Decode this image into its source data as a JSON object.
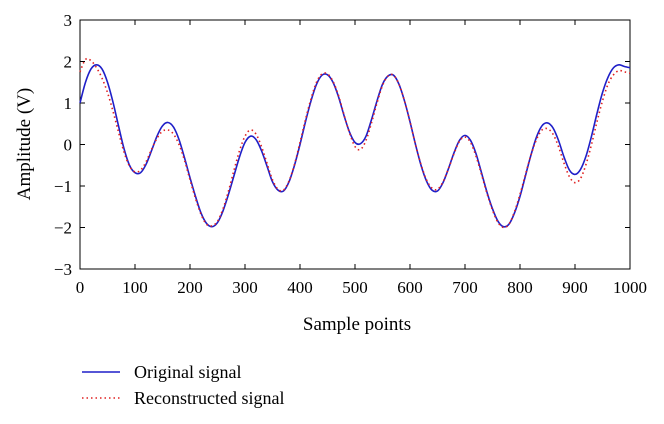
{
  "chart_data": {
    "type": "line",
    "xlabel": "Sample points",
    "ylabel": "Amplitude (V)",
    "xlim": [
      0,
      1000
    ],
    "ylim": [
      -3,
      3
    ],
    "xticks": [
      "0",
      "100",
      "200",
      "300",
      "400",
      "500",
      "600",
      "700",
      "800",
      "900",
      "1000"
    ],
    "yticks": [
      "−3",
      "−2",
      "−1",
      "0",
      "1",
      "2",
      "3"
    ],
    "grid": false,
    "legend_position": "below",
    "series": [
      {
        "name": "Original signal",
        "style": "solid",
        "color": "#1f1fc8",
        "x": [
          0,
          10,
          20,
          30,
          40,
          50,
          60,
          70,
          80,
          90,
          100,
          110,
          120,
          130,
          140,
          150,
          160,
          170,
          180,
          190,
          200,
          210,
          220,
          230,
          240,
          250,
          260,
          270,
          280,
          290,
          300,
          310,
          320,
          330,
          340,
          350,
          360,
          370,
          380,
          390,
          400,
          410,
          420,
          430,
          440,
          450,
          460,
          470,
          480,
          490,
          500,
          510,
          520,
          530,
          540,
          550,
          560,
          570,
          580,
          590,
          600,
          610,
          620,
          630,
          640,
          650,
          660,
          670,
          680,
          690,
          700,
          710,
          720,
          730,
          740,
          750,
          760,
          770,
          780,
          790,
          800,
          810,
          820,
          830,
          840,
          850,
          860,
          870,
          880,
          890,
          900,
          910,
          920,
          930,
          940,
          950,
          960,
          970,
          980,
          990,
          1000
        ],
        "y": [
          1.0,
          1.5,
          1.82,
          1.92,
          1.82,
          1.5,
          1.02,
          0.45,
          -0.1,
          -0.5,
          -0.68,
          -0.68,
          -0.48,
          -0.15,
          0.2,
          0.45,
          0.53,
          0.42,
          0.12,
          -0.32,
          -0.8,
          -1.25,
          -1.65,
          -1.9,
          -1.98,
          -1.88,
          -1.6,
          -1.2,
          -0.75,
          -0.3,
          0.05,
          0.2,
          0.12,
          -0.15,
          -0.52,
          -0.9,
          -1.1,
          -1.12,
          -0.9,
          -0.5,
          0.0,
          0.55,
          1.05,
          1.45,
          1.67,
          1.68,
          1.5,
          1.15,
          0.7,
          0.3,
          0.05,
          0.02,
          0.2,
          0.6,
          1.05,
          1.45,
          1.65,
          1.67,
          1.45,
          1.05,
          0.55,
          0.0,
          -0.5,
          -0.88,
          -1.1,
          -1.12,
          -0.92,
          -0.58,
          -0.2,
          0.1,
          0.22,
          0.1,
          -0.22,
          -0.68,
          -1.15,
          -1.55,
          -1.85,
          -1.98,
          -1.92,
          -1.65,
          -1.25,
          -0.75,
          -0.25,
          0.18,
          0.45,
          0.52,
          0.4,
          0.1,
          -0.3,
          -0.62,
          -0.72,
          -0.6,
          -0.28,
          0.2,
          0.75,
          1.25,
          1.62,
          1.85,
          1.92,
          1.88,
          1.85
        ]
      },
      {
        "name": "Reconstructed signal",
        "style": "dotted",
        "color": "#e02020",
        "x": [
          0,
          10,
          20,
          30,
          40,
          50,
          60,
          70,
          80,
          90,
          100,
          110,
          120,
          130,
          140,
          150,
          160,
          170,
          180,
          190,
          200,
          210,
          220,
          230,
          240,
          250,
          260,
          270,
          280,
          290,
          300,
          310,
          320,
          330,
          340,
          350,
          360,
          370,
          380,
          390,
          400,
          410,
          420,
          430,
          440,
          450,
          460,
          470,
          480,
          490,
          500,
          510,
          520,
          530,
          540,
          550,
          560,
          570,
          580,
          590,
          600,
          610,
          620,
          630,
          640,
          650,
          660,
          670,
          680,
          690,
          700,
          710,
          720,
          730,
          740,
          750,
          760,
          770,
          780,
          790,
          800,
          810,
          820,
          830,
          840,
          850,
          860,
          870,
          880,
          890,
          900,
          910,
          920,
          930,
          940,
          950,
          960,
          970,
          980,
          990,
          1000
        ],
        "y": [
          1.75,
          2.05,
          2.02,
          1.85,
          1.6,
          1.25,
          0.8,
          0.3,
          -0.18,
          -0.52,
          -0.66,
          -0.62,
          -0.42,
          -0.12,
          0.15,
          0.32,
          0.35,
          0.25,
          0.0,
          -0.38,
          -0.85,
          -1.3,
          -1.68,
          -1.92,
          -1.96,
          -1.85,
          -1.55,
          -1.12,
          -0.62,
          -0.15,
          0.2,
          0.35,
          0.25,
          -0.05,
          -0.45,
          -0.85,
          -1.08,
          -1.1,
          -0.88,
          -0.48,
          0.05,
          0.6,
          1.1,
          1.5,
          1.7,
          1.7,
          1.52,
          1.18,
          0.72,
          0.28,
          -0.05,
          -0.12,
          0.1,
          0.52,
          1.0,
          1.42,
          1.65,
          1.67,
          1.45,
          1.05,
          0.55,
          0.0,
          -0.48,
          -0.85,
          -1.05,
          -1.08,
          -0.9,
          -0.58,
          -0.22,
          0.08,
          0.18,
          0.05,
          -0.28,
          -0.72,
          -1.18,
          -1.58,
          -1.88,
          -2.0,
          -1.92,
          -1.62,
          -1.2,
          -0.72,
          -0.25,
          0.12,
          0.35,
          0.38,
          0.25,
          -0.05,
          -0.45,
          -0.78,
          -0.92,
          -0.82,
          -0.48,
          0.0,
          0.55,
          1.05,
          1.45,
          1.68,
          1.78,
          1.75,
          1.72
        ]
      }
    ]
  }
}
